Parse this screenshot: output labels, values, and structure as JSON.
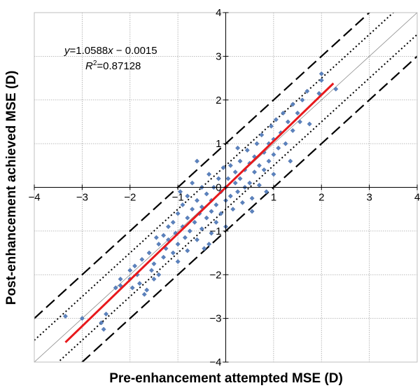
{
  "chart_data": {
    "type": "scatter",
    "title": "",
    "xlabel": "Pre-enhancement attempted MSE (D)",
    "ylabel": "Post-enhancement achieved MSE (D)",
    "xlim": [
      -4,
      4
    ],
    "ylim": [
      -4,
      4
    ],
    "xticks": [
      "−4",
      "−3",
      "−2",
      "−1",
      "0",
      "1",
      "2",
      "3",
      "4"
    ],
    "yticks": [
      "−4",
      "−3",
      "−2",
      "−1",
      "0",
      "1",
      "2",
      "3",
      "4"
    ],
    "grid": true,
    "annotation": {
      "equation_y": "y",
      "equation_x": "x",
      "equation_body": "=1.0588",
      "equation_tail": " − 0.0015",
      "r2_label": "R",
      "r2_sup": "2",
      "r2_value": "=0.87128"
    },
    "fit": {
      "slope": 1.0588,
      "intercept": -0.0015,
      "x_range": [
        -3.35,
        2.25
      ],
      "color": "#e8191c"
    },
    "reference_lines": [
      {
        "style": "solid-thin",
        "offset": 0,
        "color": "#8c8c8c"
      },
      {
        "style": "dotted",
        "offset": 0.5,
        "color": "#000000"
      },
      {
        "style": "dotted",
        "offset": -0.5,
        "color": "#000000"
      },
      {
        "style": "dashed",
        "offset": 1.0,
        "color": "#000000"
      },
      {
        "style": "dashed",
        "offset": -1.0,
        "color": "#000000"
      }
    ],
    "point_color": "#5b82bd",
    "points": [
      [
        -3.0,
        -3.0
      ],
      [
        -2.6,
        -3.1
      ],
      [
        -2.55,
        -3.25
      ],
      [
        -2.5,
        -2.9
      ],
      [
        -2.3,
        -2.3
      ],
      [
        -2.2,
        -2.1
      ],
      [
        -2.2,
        -2.25
      ],
      [
        -2.0,
        -1.9
      ],
      [
        -2.0,
        -2.1
      ],
      [
        -1.95,
        -2.3
      ],
      [
        -1.9,
        -1.8
      ],
      [
        -1.85,
        -2.0
      ],
      [
        -1.8,
        -2.2
      ],
      [
        -1.7,
        -2.45
      ],
      [
        -1.75,
        -1.65
      ],
      [
        -1.6,
        -1.5
      ],
      [
        -1.55,
        -1.9
      ],
      [
        -1.5,
        -1.75
      ],
      [
        -1.5,
        -2.1
      ],
      [
        -1.4,
        -1.3
      ],
      [
        -1.4,
        -2.0
      ],
      [
        -1.3,
        -1.1
      ],
      [
        -1.3,
        -1.6
      ],
      [
        -1.25,
        -1.4
      ],
      [
        -1.2,
        -0.9
      ],
      [
        -1.2,
        -1.2
      ],
      [
        -1.1,
        -0.8
      ],
      [
        -1.1,
        -1.5
      ],
      [
        -1.05,
        -1.05
      ],
      [
        -1.0,
        -0.6
      ],
      [
        -1.0,
        -1.3
      ],
      [
        -1.0,
        -1.7
      ],
      [
        -0.9,
        -0.4
      ],
      [
        -0.9,
        -0.9
      ],
      [
        -0.85,
        -1.15
      ],
      [
        -0.8,
        -0.2
      ],
      [
        -0.8,
        -0.7
      ],
      [
        -0.8,
        -1.45
      ],
      [
        -0.75,
        -1.0
      ],
      [
        -0.7,
        -0.5
      ],
      [
        -0.7,
        0.1
      ],
      [
        -0.65,
        -0.8
      ],
      [
        -0.6,
        -0.3
      ],
      [
        -0.6,
        -1.2
      ],
      [
        -0.55,
        -0.6
      ],
      [
        -0.5,
        0.0
      ],
      [
        -0.5,
        -0.45
      ],
      [
        -0.5,
        -0.95
      ],
      [
        -0.45,
        -1.4
      ],
      [
        -0.4,
        -0.15
      ],
      [
        -0.4,
        -0.7
      ],
      [
        -0.35,
        0.3
      ],
      [
        -0.3,
        -0.3
      ],
      [
        -0.3,
        -0.55
      ],
      [
        -0.3,
        -1.05
      ],
      [
        -0.25,
        0.0
      ],
      [
        -0.2,
        -0.4
      ],
      [
        -0.2,
        -0.8
      ],
      [
        -0.15,
        0.2
      ],
      [
        -0.1,
        -0.1
      ],
      [
        -0.1,
        -0.6
      ],
      [
        -0.05,
        0.45
      ],
      [
        0.0,
        0.0
      ],
      [
        0.0,
        -0.3
      ],
      [
        0.0,
        -0.9
      ],
      [
        0.05,
        0.2
      ],
      [
        0.1,
        -0.2
      ],
      [
        0.1,
        0.5
      ],
      [
        0.15,
        -0.5
      ],
      [
        0.2,
        0.1
      ],
      [
        0.2,
        0.35
      ],
      [
        0.25,
        -0.1
      ],
      [
        0.3,
        0.6
      ],
      [
        0.3,
        0.2
      ],
      [
        0.35,
        -0.35
      ],
      [
        0.4,
        0.4
      ],
      [
        0.4,
        0.0
      ],
      [
        0.45,
        0.85
      ],
      [
        0.5,
        0.55
      ],
      [
        0.5,
        0.1
      ],
      [
        0.55,
        -0.25
      ],
      [
        0.6,
        0.7
      ],
      [
        0.6,
        0.35
      ],
      [
        0.65,
        1.0
      ],
      [
        0.7,
        0.5
      ],
      [
        0.7,
        0.05
      ],
      [
        0.75,
        1.2
      ],
      [
        0.8,
        0.8
      ],
      [
        0.8,
        0.4
      ],
      [
        0.85,
        -0.1
      ],
      [
        0.9,
        1.0
      ],
      [
        0.9,
        0.6
      ],
      [
        0.95,
        1.4
      ],
      [
        1.0,
        1.1
      ],
      [
        1.0,
        0.75
      ],
      [
        1.0,
        0.3
      ],
      [
        1.05,
        1.55
      ],
      [
        1.1,
        0.9
      ],
      [
        1.15,
        1.25
      ],
      [
        1.2,
        1.7
      ],
      [
        1.25,
        1.0
      ],
      [
        1.3,
        1.5
      ],
      [
        1.35,
        0.6
      ],
      [
        1.4,
        1.3
      ],
      [
        1.4,
        1.9
      ],
      [
        1.5,
        1.7
      ],
      [
        1.55,
        1.5
      ],
      [
        1.6,
        2.0
      ],
      [
        1.7,
        2.2
      ],
      [
        1.95,
        2.15
      ],
      [
        2.0,
        2.45
      ],
      [
        2.0,
        2.6
      ],
      [
        2.3,
        2.25
      ],
      [
        -1.65,
        -2.35
      ],
      [
        -1.45,
        -1.15
      ],
      [
        -0.95,
        -0.1
      ],
      [
        -0.6,
        0.6
      ],
      [
        0.25,
        0.9
      ],
      [
        -0.35,
        -1.3
      ],
      [
        0.55,
        -0.55
      ],
      [
        -3.35,
        -2.95
      ],
      [
        1.75,
        1.45
      ]
    ]
  }
}
